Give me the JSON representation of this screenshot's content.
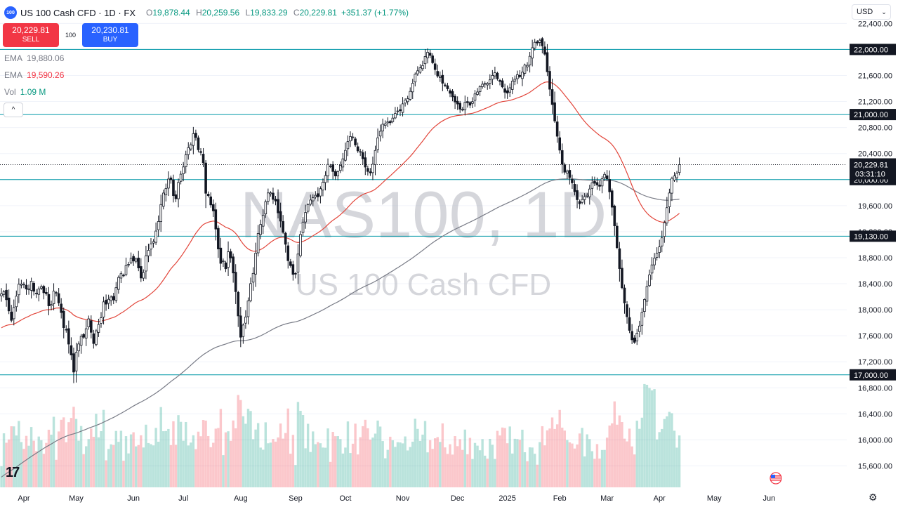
{
  "header": {
    "logo_text": "100",
    "symbol": "US 100 Cash CFD · 1D · FX",
    "ohlc": {
      "o_label": "O",
      "o": "19,878.44",
      "h_label": "H",
      "h": "20,259.56",
      "l_label": "L",
      "l": "19,833.29",
      "c_label": "C",
      "c": "20,229.81"
    },
    "change": "+351.37 (+1.77%)"
  },
  "trade": {
    "sell_price": "20,229.81",
    "sell_label": "SELL",
    "spread": "100",
    "buy_price": "20,230.81",
    "buy_label": "BUY"
  },
  "indicators": [
    {
      "name": "EMA",
      "value": "19,880.06"
    },
    {
      "name": "EMA",
      "value": "19,590.26"
    },
    {
      "name": "Vol",
      "value": "1.09 M"
    }
  ],
  "collapse_glyph": "^",
  "currency": "USD",
  "currency_glyph": "⌄",
  "tv_logo": "17",
  "settings_glyph": "⚙",
  "watermark": {
    "line1": "NAS100, 1D",
    "line2": "US 100 Cash CFD"
  },
  "colors": {
    "up": "#089981",
    "down": "#f23645",
    "ema_long": "#787b86",
    "ema_short": "#e2463b",
    "level": "#0097a7",
    "axis_label_bg": "#131722"
  },
  "chart_data": {
    "type": "candlestick",
    "price_axis": {
      "min": 15260,
      "max": 22760,
      "ticks": [
        15600,
        16000,
        16400,
        16800,
        17200,
        17600,
        18000,
        18400,
        18800,
        19200,
        19600,
        20000,
        20400,
        20800,
        21200,
        21600,
        22000,
        22400
      ]
    },
    "x_axis_labels": [
      {
        "label": "Apr",
        "i": 9
      },
      {
        "label": "May",
        "i": 30
      },
      {
        "label": "Jun",
        "i": 53
      },
      {
        "label": "Jul",
        "i": 73
      },
      {
        "label": "Aug",
        "i": 96
      },
      {
        "label": "Sep",
        "i": 118
      },
      {
        "label": "Oct",
        "i": 138
      },
      {
        "label": "Nov",
        "i": 161
      },
      {
        "label": "Dec",
        "i": 183
      },
      {
        "label": "2025",
        "i": 203
      },
      {
        "label": "Feb",
        "i": 224
      },
      {
        "label": "Mar",
        "i": 243
      },
      {
        "label": "Apr",
        "i": 264
      },
      {
        "label": "May",
        "i": 286
      },
      {
        "label": "Jun",
        "i": 308
      }
    ],
    "horizontal_levels": [
      22000,
      21000,
      20000,
      19130,
      17000
    ],
    "current_price": {
      "value": 20229.81,
      "label": "20,229.81",
      "countdown": "03:31:10"
    },
    "closes": [
      18244,
      18277,
      18154,
      17982,
      17837,
      18034,
      18208,
      18392,
      18395,
      18393,
      18318,
      18322,
      18437,
      18284,
      18256,
      18319,
      18353,
      18261,
      18246,
      18060,
      18081,
      18286,
      18264,
      18105,
      17957,
      17725,
      17693,
      17472,
      17305,
      17042,
      17346,
      17474,
      17592,
      17578,
      17708,
      17860,
      17653,
      17481,
      17676,
      17773,
      17876,
      18121,
      18086,
      18160,
      18196,
      18151,
      18339,
      18496,
      18554,
      18521,
      18680,
      18697,
      18790,
      18749,
      18780,
      18643,
      18488,
      18572,
      18829,
      18913,
      19012,
      19047,
      19209,
      19356,
      19617,
      19793,
      19861,
      20008,
      19998,
      19753,
      19706,
      19957,
      20083,
      20194,
      20381,
      20491,
      20535,
      20705,
      20648,
      20458,
      20416,
      20257,
      19790,
      19753,
      19611,
      19520,
      19240,
      18934,
      18713,
      18749,
      18630,
      18890,
      18796,
      18565,
      18278,
      17905,
      17578,
      17765,
      17889,
      18135,
      18402,
      18559,
      18870,
      19172,
      19311,
      19452,
      19661,
      19795,
      19797,
      19696,
      19671,
      19489,
      19362,
      19189,
      19006,
      18754,
      18679,
      18543,
      18553,
      18856,
      19158,
      19347,
      19495,
      19615,
      19686,
      19722,
      19758,
      19735,
      19860,
      19960,
      20062,
      20233,
      20210,
      20124,
      20056,
      20121,
      20219,
      20319,
      20449,
      20584,
      20662,
      20655,
      20532,
      20441,
      20431,
      20321,
      20192,
      20125,
      20104,
      20236,
      20448,
      20642,
      20743,
      20851,
      20856,
      20887,
      20874,
      20945,
      21016,
      21054,
      21059,
      21164,
      21223,
      21244,
      21355,
      21481,
      21621,
      21672,
      21718,
      21753,
      21892,
      21957,
      21908,
      21796,
      21691,
      21592,
      21592,
      21481,
      21450,
      21395,
      21327,
      21272,
      21193,
      21162,
      21082,
      21079,
      21188,
      21183,
      21143,
      21198,
      21317,
      21347,
      21429,
      21466,
      21478,
      21477,
      21533,
      21601,
      21643,
      21549,
      21508,
      21424,
      21343,
      21330,
      21411,
      21513,
      21542,
      21612,
      21581,
      21651,
      21761,
      21755,
      21895,
      22026,
      22110,
      22099,
      22142,
      22055,
      21928,
      21657,
      21389,
      21154,
      20901,
      20666,
      20453,
      20237,
      20114,
      20129,
      20032,
      19950,
      19815,
      19691,
      19629,
      19694,
      19737,
      19760,
      19855,
      19951,
      19944,
      19917,
      19897,
      20015,
      20081,
      20011,
      19813,
      19576,
      19290,
      18955,
      18632,
      18339,
      18104,
      17893,
      17683,
      17538,
      17500,
      17640,
      17750,
      17959,
      18158,
      18357,
      18536,
      18689,
      18793,
      18869,
      18966,
      19105,
      19338,
      19568,
      19794,
      20019,
      20056,
      20097,
      20229
    ],
    "ema_long_range": "~15,600 to ~20,030",
    "volume_scale": "relative"
  }
}
